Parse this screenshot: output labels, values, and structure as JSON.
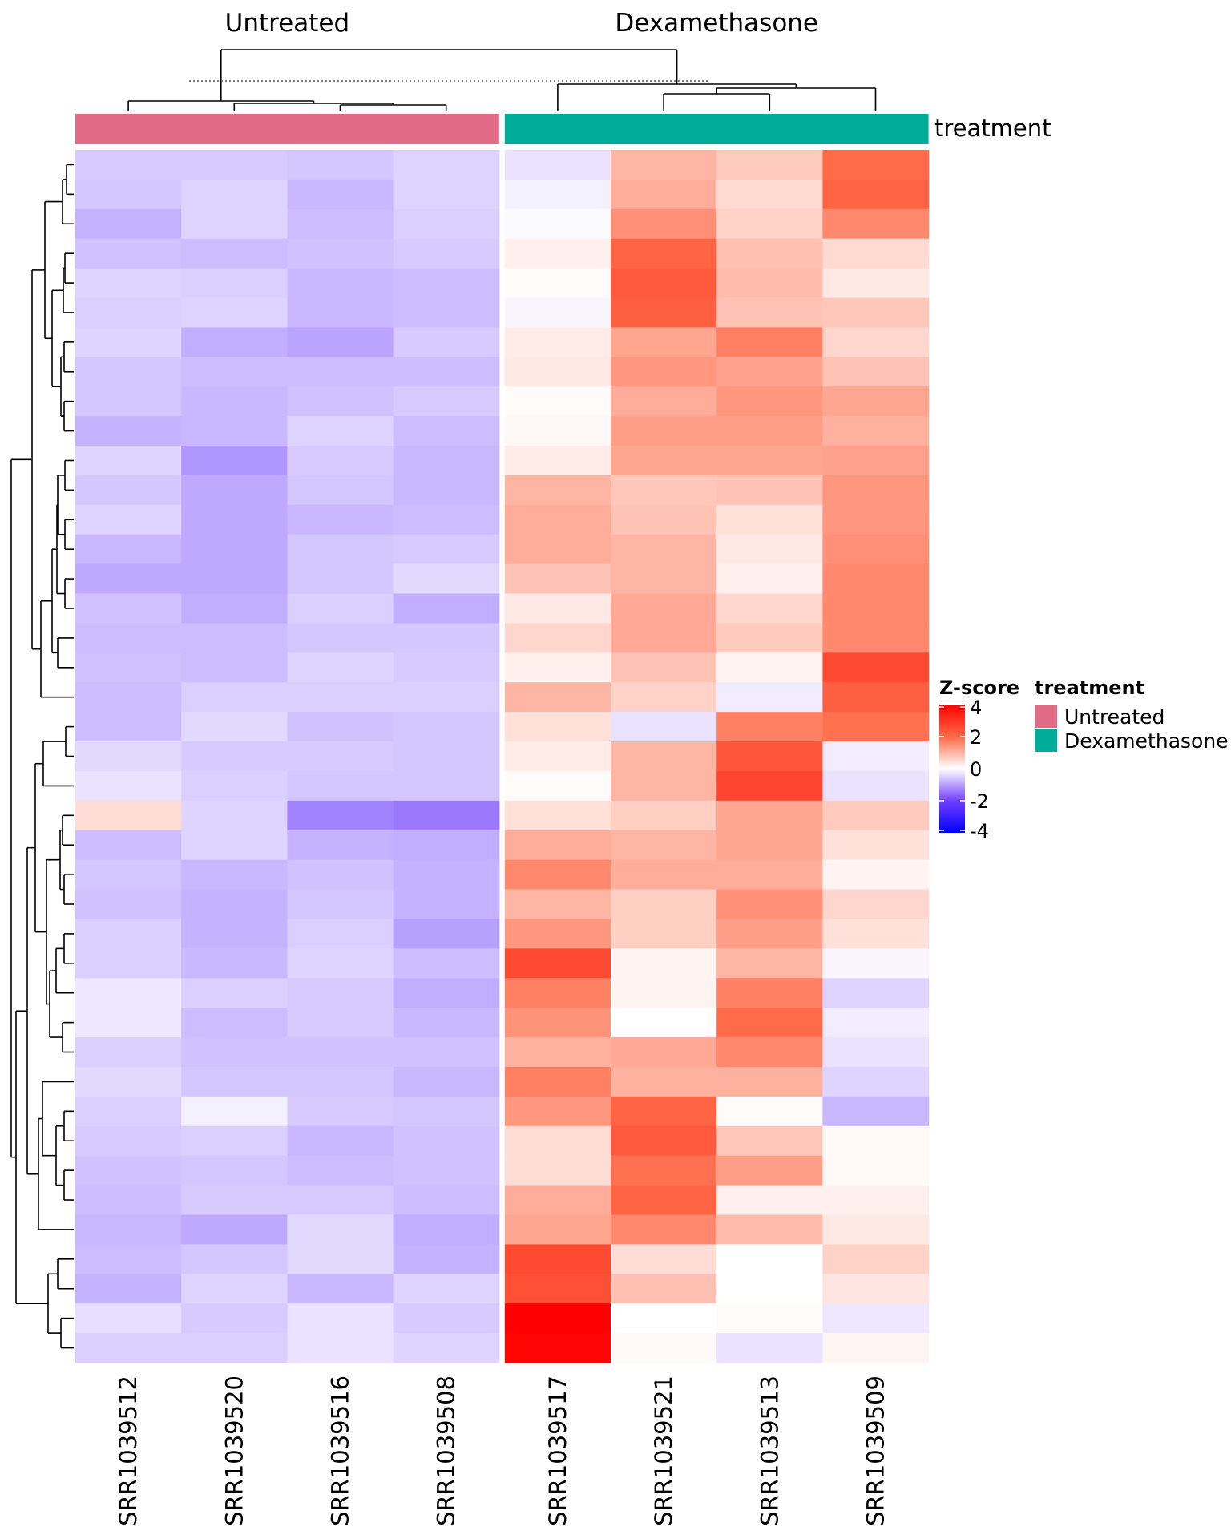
{
  "chart_data": {
    "type": "heatmap",
    "title": "",
    "column_split_titles": [
      "Untreated",
      "Dexamethasone"
    ],
    "columns": [
      "SRR1039512",
      "SRR1039520",
      "SRR1039516",
      "SRR1039508",
      "SRR1039517",
      "SRR1039521",
      "SRR1039513",
      "SRR1039509"
    ],
    "column_groups": [
      "Untreated",
      "Untreated",
      "Untreated",
      "Untreated",
      "Dexamethasone",
      "Dexamethasone",
      "Dexamethasone",
      "Dexamethasone"
    ],
    "annotation_title": "treatment",
    "annotation_colors": {
      "Untreated": "#E16A86",
      "Dexamethasone": "#00AD9A"
    },
    "row_count": 41,
    "values": [
      [
        -0.55,
        -0.55,
        -0.6,
        -0.45,
        -0.3,
        1.0,
        0.7,
        2.0
      ],
      [
        -0.6,
        -0.45,
        -0.75,
        -0.45,
        -0.15,
        1.1,
        0.5,
        2.1
      ],
      [
        -0.8,
        -0.45,
        -0.7,
        -0.5,
        -0.05,
        1.5,
        0.6,
        1.6
      ],
      [
        -0.65,
        -0.7,
        -0.65,
        -0.55,
        0.2,
        2.1,
        0.85,
        0.5
      ],
      [
        -0.45,
        -0.5,
        -0.75,
        -0.7,
        0.05,
        2.3,
        0.9,
        0.3
      ],
      [
        -0.5,
        -0.45,
        -0.75,
        -0.7,
        -0.1,
        2.2,
        0.8,
        0.75
      ],
      [
        -0.45,
        -0.85,
        -0.95,
        -0.55,
        0.25,
        1.2,
        1.7,
        0.55
      ],
      [
        -0.6,
        -0.7,
        -0.7,
        -0.7,
        0.3,
        1.4,
        1.25,
        0.8
      ],
      [
        -0.6,
        -0.75,
        -0.65,
        -0.55,
        0.05,
        1.1,
        1.4,
        1.2
      ],
      [
        -0.8,
        -0.75,
        -0.45,
        -0.7,
        0.1,
        1.3,
        1.3,
        1.05
      ],
      [
        -0.45,
        -1.1,
        -0.55,
        -0.75,
        0.25,
        1.2,
        1.2,
        1.25
      ],
      [
        -0.6,
        -0.9,
        -0.6,
        -0.75,
        1.0,
        0.75,
        0.8,
        1.4
      ],
      [
        -0.45,
        -0.9,
        -0.75,
        -0.7,
        1.1,
        0.8,
        0.4,
        1.4
      ],
      [
        -0.75,
        -0.9,
        -0.6,
        -0.55,
        1.1,
        1.0,
        0.3,
        1.5
      ],
      [
        -0.9,
        -0.9,
        -0.6,
        -0.4,
        0.8,
        1.0,
        0.2,
        1.6
      ],
      [
        -0.65,
        -0.85,
        -0.5,
        -0.85,
        0.3,
        1.15,
        0.55,
        1.6
      ],
      [
        -0.7,
        -0.7,
        -0.6,
        -0.6,
        0.55,
        1.15,
        0.7,
        1.6
      ],
      [
        -0.65,
        -0.7,
        -0.45,
        -0.55,
        0.2,
        0.8,
        0.15,
        2.6
      ],
      [
        -0.7,
        -0.5,
        -0.5,
        -0.5,
        1.0,
        0.6,
        -0.2,
        2.2
      ],
      [
        -0.7,
        -0.4,
        -0.65,
        -0.6,
        0.4,
        -0.3,
        1.7,
        1.9
      ],
      [
        -0.4,
        -0.55,
        -0.55,
        -0.6,
        0.25,
        1.0,
        2.4,
        -0.2
      ],
      [
        -0.3,
        -0.5,
        -0.6,
        -0.6,
        0.05,
        1.0,
        2.7,
        -0.3
      ],
      [
        0.45,
        -0.45,
        -1.3,
        -1.4,
        0.4,
        0.65,
        1.2,
        0.7
      ],
      [
        -0.7,
        -0.45,
        -0.8,
        -0.85,
        1.1,
        1.0,
        1.2,
        0.4
      ],
      [
        -0.6,
        -0.75,
        -0.65,
        -0.8,
        1.6,
        1.1,
        1.1,
        0.15
      ],
      [
        -0.65,
        -0.8,
        -0.6,
        -0.8,
        1.0,
        0.65,
        1.5,
        0.55
      ],
      [
        -0.5,
        -0.8,
        -0.5,
        -1.0,
        1.4,
        0.65,
        1.3,
        0.4
      ],
      [
        -0.5,
        -0.75,
        -0.45,
        -0.7,
        2.6,
        0.15,
        1.0,
        -0.1
      ],
      [
        -0.25,
        -0.5,
        -0.55,
        -0.85,
        1.7,
        0.15,
        1.7,
        -0.45
      ],
      [
        -0.25,
        -0.7,
        -0.55,
        -0.75,
        1.45,
        0.0,
        2.0,
        -0.2
      ],
      [
        -0.5,
        -0.65,
        -0.65,
        -0.65,
        1.05,
        1.15,
        1.6,
        -0.3
      ],
      [
        -0.4,
        -0.6,
        -0.6,
        -0.75,
        1.7,
        1.05,
        1.05,
        -0.45
      ],
      [
        -0.5,
        -0.15,
        -0.55,
        -0.6,
        1.4,
        2.1,
        0.05,
        -0.75
      ],
      [
        -0.55,
        -0.5,
        -0.75,
        -0.65,
        0.45,
        2.3,
        0.75,
        0.08
      ],
      [
        -0.65,
        -0.6,
        -0.7,
        -0.65,
        0.45,
        1.9,
        1.3,
        0.08
      ],
      [
        -0.7,
        -0.55,
        -0.55,
        -0.7,
        1.1,
        2.1,
        0.2,
        0.2
      ],
      [
        -0.75,
        -0.9,
        -0.4,
        -0.85,
        1.2,
        1.6,
        0.9,
        0.3
      ],
      [
        -0.7,
        -0.6,
        -0.4,
        -0.8,
        2.6,
        0.45,
        0.0,
        0.6
      ],
      [
        -0.8,
        -0.45,
        -0.75,
        -0.45,
        2.5,
        0.85,
        0.0,
        0.35
      ],
      [
        -0.35,
        -0.55,
        -0.3,
        -0.55,
        4.0,
        0.0,
        0.05,
        -0.25
      ],
      [
        -0.5,
        -0.5,
        -0.3,
        -0.45,
        3.9,
        0.08,
        -0.3,
        0.12
      ]
    ],
    "color_scale": {
      "title": "Z-score",
      "stops": [
        {
          "value": -4,
          "color": "#0000FF"
        },
        {
          "value": -2,
          "color": "#7040FF"
        },
        {
          "value": 0,
          "color": "#FFFFFF"
        },
        {
          "value": 2,
          "color": "#FF6A48"
        },
        {
          "value": 4,
          "color": "#FF0000"
        }
      ],
      "ticks": [
        "4",
        "2",
        "0",
        "-2",
        "-4"
      ],
      "range": [
        -4,
        4
      ]
    },
    "legend": {
      "heatmap_title": "Z-score",
      "annotation_title": "treatment",
      "annotation_items": [
        "Untreated",
        "Dexamethasone"
      ],
      "placement": "right"
    },
    "dendrograms": {
      "rows": true,
      "columns": true,
      "column_cut_line": "dashed"
    }
  }
}
